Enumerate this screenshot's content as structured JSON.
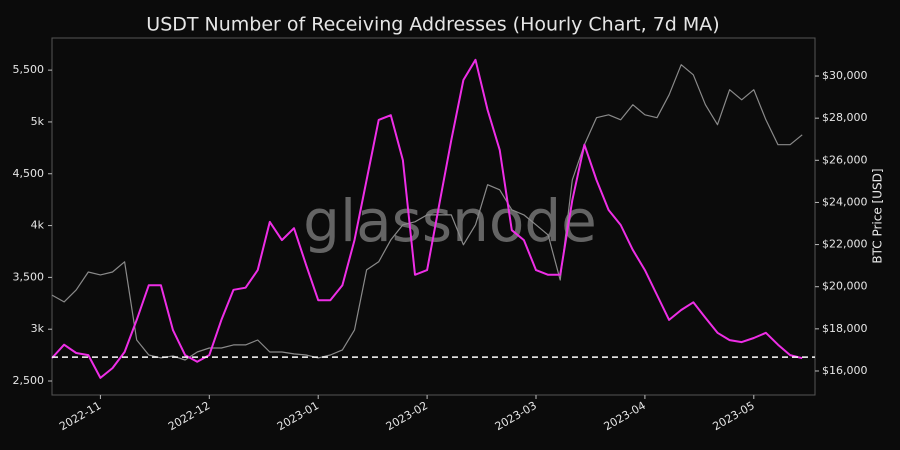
{
  "chart_data": {
    "type": "line",
    "title": "USDT Number of Receiving Addresses (Hourly Chart, 7d MA)",
    "y2label": "BTC Price [USD]",
    "watermark": "glassnode",
    "categories": [
      null,
      null,
      null,
      null,
      "2022-11",
      null,
      null,
      null,
      null,
      null,
      null,
      null,
      null,
      "2022-12",
      null,
      null,
      null,
      null,
      null,
      null,
      null,
      null,
      "2023-01",
      null,
      null,
      null,
      null,
      null,
      null,
      null,
      null,
      "2023-02",
      null,
      null,
      null,
      null,
      null,
      null,
      null,
      null,
      "2023-03",
      null,
      null,
      null,
      null,
      null,
      null,
      null,
      null,
      "2023-04",
      null,
      null,
      null,
      null,
      null,
      null,
      null,
      null,
      "2023-05",
      null,
      null,
      null,
      null
    ],
    "series": [
      {
        "color": "#8a8a8a",
        "axis": "y2",
        "values": [
          19600,
          19280,
          19850,
          20700,
          20560,
          20700,
          21180,
          17470,
          16760,
          16620,
          16710,
          16520,
          16900,
          17090,
          17090,
          17240,
          17240,
          17470,
          16900,
          16900,
          16810,
          16760,
          16620,
          16760,
          17000,
          17950,
          20800,
          21180,
          22220,
          22940,
          23080,
          23410,
          23410,
          23410,
          21990,
          22940,
          24840,
          24600,
          23650,
          23410,
          22940,
          22460,
          20320,
          25070,
          26740,
          28020,
          28160,
          27920,
          28640,
          28160,
          28020,
          29110,
          30540,
          30060,
          28640,
          27690,
          29350,
          28870,
          29350,
          27920,
          26740,
          26740,
          27210
        ]
      },
      {
        "color": "#ee2ee6",
        "values": [
          2722,
          2850,
          2770,
          2750,
          2530,
          2625,
          2780,
          3090,
          3425,
          3425,
          2990,
          2750,
          2685,
          2750,
          3090,
          3380,
          3400,
          3570,
          4035,
          3860,
          3975,
          3620,
          3280,
          3280,
          3425,
          3860,
          4440,
          5020,
          5065,
          4630,
          3525,
          3570,
          4200,
          4825,
          5405,
          5600,
          5115,
          4730,
          3955,
          3860,
          3570,
          3525,
          3525,
          4245,
          4780,
          4440,
          4150,
          4005,
          3765,
          3570,
          3330,
          3090,
          3185,
          3260,
          3110,
          2965,
          2895,
          2875,
          2915,
          2965,
          2850,
          2750,
          2720
        ]
      }
    ],
    "hline": 2730,
    "ylim": [
      2365,
      5810
    ],
    "yticks": [
      {
        "value": 2500,
        "label": "2,500"
      },
      {
        "value": 3000,
        "label": "3k"
      },
      {
        "value": 3500,
        "label": "3,500"
      },
      {
        "value": 4000,
        "label": "4k"
      },
      {
        "value": 4500,
        "label": "4,500"
      },
      {
        "value": 5000,
        "label": "5k"
      },
      {
        "value": 5500,
        "label": "5,500"
      }
    ],
    "y2lim": [
      14860,
      31805
    ],
    "y2ticks": [
      {
        "value": 16000,
        "label": "$16,000"
      },
      {
        "value": 18000,
        "label": "$18,000"
      },
      {
        "value": 20000,
        "label": "$20,000"
      },
      {
        "value": 22000,
        "label": "$22,000"
      },
      {
        "value": 24000,
        "label": "$24,000"
      },
      {
        "value": 26000,
        "label": "$26,000"
      },
      {
        "value": 28000,
        "label": "$28,000"
      },
      {
        "value": 30000,
        "label": "$30,000"
      }
    ],
    "grid": false
  }
}
